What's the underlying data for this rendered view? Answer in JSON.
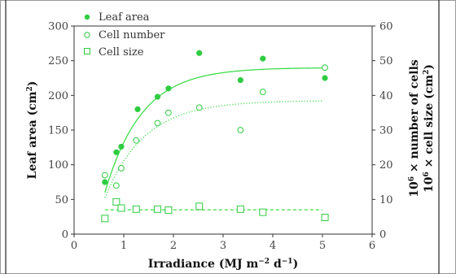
{
  "chart_data": {
    "type": "scatter",
    "xlabel_parts": [
      "Irradiance (MJ m",
      "−2",
      " d",
      "−1",
      ")"
    ],
    "ylabel_left_parts": [
      "Leaf area (cm",
      "2",
      ")"
    ],
    "ylabel_right_line1_parts": [
      "10",
      "6",
      " × number of cells"
    ],
    "ylabel_right_line2_parts": [
      "10",
      "6",
      " × cell size (cm",
      "2",
      ")"
    ],
    "x_ticks": [
      "0",
      "1",
      "2",
      "3",
      "4",
      "5",
      "6"
    ],
    "y_left_ticks": [
      "0",
      "50",
      "100",
      "150",
      "200",
      "250",
      "300"
    ],
    "y_right_ticks": [
      "0",
      "10",
      "20",
      "30",
      "40",
      "50",
      "60"
    ],
    "xlim": [
      0,
      6
    ],
    "ylim_left": [
      0,
      300
    ],
    "ylim_right": [
      0,
      60
    ],
    "colors": {
      "series": "#2ecc40",
      "curve": "#3ddc4a",
      "axes": "#333333",
      "frame": "#222222"
    },
    "series": [
      {
        "name": "Leaf area",
        "marker": "filled-circle",
        "axis": "left",
        "points": [
          [
            0.62,
            75
          ],
          [
            0.85,
            118
          ],
          [
            0.95,
            126
          ],
          [
            1.28,
            180
          ],
          [
            1.68,
            198
          ],
          [
            1.9,
            210
          ],
          [
            2.52,
            261
          ],
          [
            3.35,
            222
          ],
          [
            3.8,
            253
          ],
          [
            5.05,
            225
          ]
        ],
        "fit": {
          "style": "solid",
          "x_range": [
            0.62,
            5.0
          ],
          "asymptote": 240,
          "y_start": 60,
          "rate": 1.35,
          "x_start": 0.62
        }
      },
      {
        "name": "Cell number",
        "marker": "open-circle",
        "axis": "right",
        "points": [
          [
            0.62,
            17
          ],
          [
            0.85,
            14
          ],
          [
            0.95,
            19
          ],
          [
            1.25,
            27
          ],
          [
            1.68,
            32
          ],
          [
            1.9,
            35
          ],
          [
            2.52,
            36.5
          ],
          [
            3.35,
            30
          ],
          [
            3.8,
            41
          ],
          [
            5.05,
            48
          ]
        ],
        "fit": {
          "style": "dotted",
          "x_range": [
            0.62,
            5.0
          ],
          "asymptote": 38.5,
          "y_start": 10.5,
          "rate": 1.25,
          "x_start": 0.62
        }
      },
      {
        "name": "Cell size",
        "marker": "open-square",
        "axis": "right",
        "points": [
          [
            0.62,
            4.5
          ],
          [
            0.85,
            9.3
          ],
          [
            0.95,
            7.5
          ],
          [
            1.25,
            7.2
          ],
          [
            1.68,
            7.2
          ],
          [
            1.9,
            6.9
          ],
          [
            2.52,
            8.0
          ],
          [
            3.35,
            7.2
          ],
          [
            3.8,
            6.3
          ],
          [
            5.05,
            4.8
          ]
        ],
        "fit": {
          "style": "dashed",
          "x_range": [
            0.62,
            5.0
          ],
          "asymptote": 7.0,
          "y_start": 7.0,
          "rate": 1.0,
          "x_start": 0.62
        }
      }
    ]
  }
}
